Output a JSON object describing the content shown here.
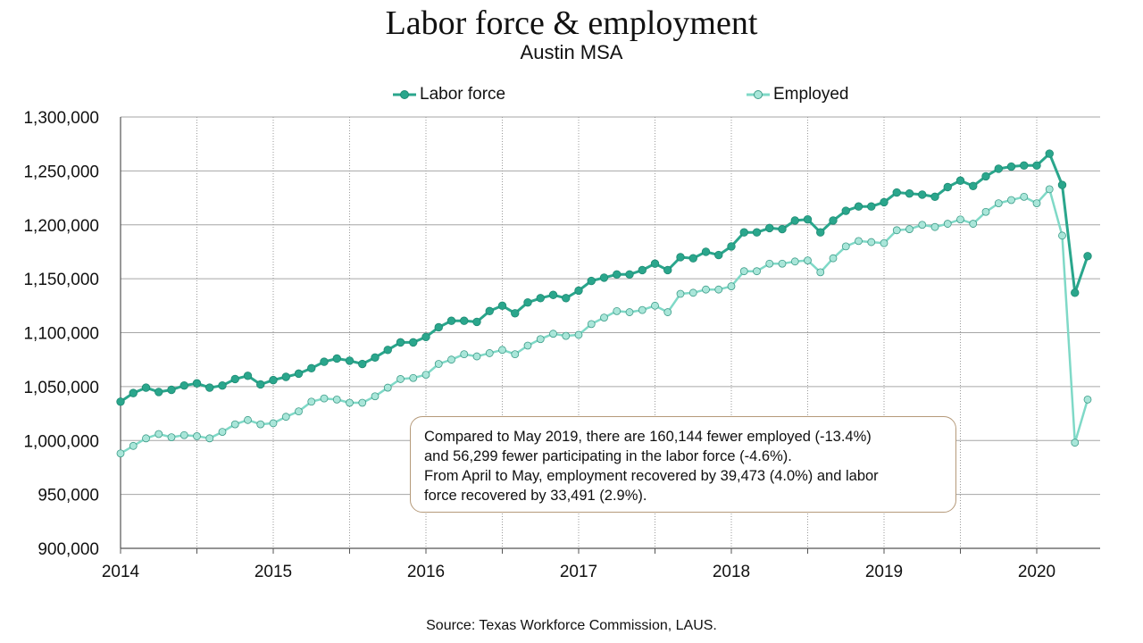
{
  "title": "Labor force & employment",
  "subtitle": "Austin MSA",
  "source": "Source: Texas Workforce Commission, LAUS.",
  "annotation": {
    "line1": "Compared to May 2019, there are 160,144 fewer employed (-13.4%)",
    "line2": "and 56,299 fewer participating in the labor force (-4.6%).",
    "line3": "From April to May,  employment recovered by 39,473 (4.0%) and labor",
    "line4": "force recovered by 33,491 (2.9%)."
  },
  "colors": {
    "labor_force": "#2aa68c",
    "employed": "#7fd9c7",
    "grid": "#a0a0a0",
    "annotation_border": "#b59a7a"
  },
  "chart_data": {
    "type": "line",
    "title": "Labor force & employment",
    "subtitle": "Austin MSA",
    "ylim": [
      900000,
      1300000
    ],
    "yticks": [
      "1,300,000",
      "1,250,000",
      "1,200,000",
      "1,150,000",
      "1,100,000",
      "1,050,000",
      "1,000,000",
      "950,000",
      "900,000"
    ],
    "yticks_values": [
      1300000,
      1250000,
      1200000,
      1150000,
      1100000,
      1050000,
      1000000,
      950000,
      900000
    ],
    "xticks": [
      "2014",
      "2015",
      "2016",
      "2017",
      "2018",
      "2019",
      "2020"
    ],
    "x_start": "2014-01",
    "x_end": "2020-05",
    "grid": true,
    "legend": "top",
    "series": [
      {
        "name": "Labor force",
        "values": [
          1036000,
          1044000,
          1049000,
          1045000,
          1047000,
          1051000,
          1053000,
          1049000,
          1051000,
          1057000,
          1060000,
          1052000,
          1056000,
          1059000,
          1062000,
          1067000,
          1073000,
          1076000,
          1074000,
          1071000,
          1077000,
          1084000,
          1091000,
          1091000,
          1096000,
          1105000,
          1111000,
          1111000,
          1110000,
          1120000,
          1125000,
          1118000,
          1128000,
          1132000,
          1135000,
          1132000,
          1139000,
          1148000,
          1151000,
          1154000,
          1154000,
          1158000,
          1164000,
          1158000,
          1170000,
          1169000,
          1175000,
          1172000,
          1180000,
          1193000,
          1193000,
          1197000,
          1196000,
          1204000,
          1205000,
          1193000,
          1204000,
          1213000,
          1217000,
          1217000,
          1221000,
          1230000,
          1229000,
          1228000,
          1226000,
          1235000,
          1241000,
          1236000,
          1245000,
          1252000,
          1254000,
          1255000,
          1255000,
          1266000,
          1237000,
          1137000,
          1171000
        ]
      },
      {
        "name": "Employed",
        "values": [
          988000,
          995000,
          1002000,
          1006000,
          1003000,
          1005000,
          1004000,
          1002000,
          1008000,
          1015000,
          1019000,
          1015000,
          1016000,
          1022000,
          1027000,
          1036000,
          1039000,
          1038000,
          1035000,
          1035000,
          1041000,
          1049000,
          1057000,
          1058000,
          1061000,
          1071000,
          1075000,
          1080000,
          1078000,
          1081000,
          1084000,
          1080000,
          1088000,
          1094000,
          1099000,
          1097000,
          1098000,
          1108000,
          1114000,
          1120000,
          1119000,
          1121000,
          1125000,
          1119000,
          1136000,
          1137000,
          1140000,
          1140000,
          1143000,
          1157000,
          1157000,
          1164000,
          1164000,
          1166000,
          1167000,
          1156000,
          1169000,
          1180000,
          1185000,
          1184000,
          1183000,
          1195000,
          1196000,
          1200000,
          1198000,
          1201000,
          1205000,
          1201000,
          1212000,
          1220000,
          1223000,
          1226000,
          1220000,
          1233000,
          1190000,
          998000,
          1038000
        ]
      }
    ]
  }
}
